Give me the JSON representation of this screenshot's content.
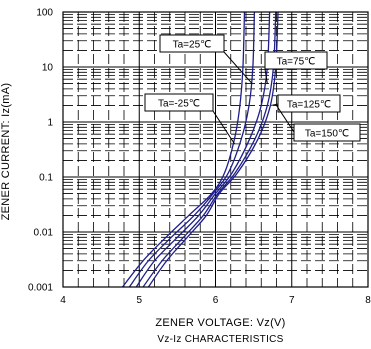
{
  "chart_data": {
    "type": "line",
    "title": "",
    "caption": "Vz-Iz CHARACTERISTICS",
    "xlabel": "ZENER VOLTAGE: Vz(V)",
    "ylabel": "ZENER CURRENT: Iz(mA)",
    "xlim": [
      4,
      8
    ],
    "ylim": [
      0.001,
      100
    ],
    "yscale": "log",
    "grid": true,
    "xticks": [
      {
        "value": 4,
        "label": "4"
      },
      {
        "value": 5,
        "label": "5"
      },
      {
        "value": 6,
        "label": "6"
      },
      {
        "value": 7,
        "label": "7"
      },
      {
        "value": 8,
        "label": "8"
      }
    ],
    "yticks": [
      {
        "value": 100,
        "label": "100"
      },
      {
        "value": 10,
        "label": "10"
      },
      {
        "value": 1,
        "label": "1"
      },
      {
        "value": 0.1,
        "label": "0.1"
      },
      {
        "value": 0.01,
        "label": "0.01"
      },
      {
        "value": 0.001,
        "label": "0.001"
      }
    ],
    "series": [
      {
        "name": "Ta=-25℃",
        "points": [
          [
            4.78,
            0.001
          ],
          [
            5.05,
            0.003
          ],
          [
            5.35,
            0.008
          ],
          [
            5.65,
            0.02
          ],
          [
            5.95,
            0.05
          ],
          [
            6.12,
            0.12
          ],
          [
            6.25,
            0.5
          ],
          [
            6.32,
            2.0
          ],
          [
            6.36,
            10
          ],
          [
            6.38,
            100
          ]
        ]
      },
      {
        "name": "Ta=25℃",
        "points": [
          [
            4.87,
            0.001
          ],
          [
            5.12,
            0.003
          ],
          [
            5.42,
            0.008
          ],
          [
            5.72,
            0.02
          ],
          [
            5.97,
            0.05
          ],
          [
            6.17,
            0.12
          ],
          [
            6.34,
            0.5
          ],
          [
            6.44,
            2.0
          ],
          [
            6.49,
            10
          ],
          [
            6.51,
            100
          ]
        ]
      },
      {
        "name": "Ta=75℃",
        "points": [
          [
            4.96,
            0.001
          ],
          [
            5.2,
            0.003
          ],
          [
            5.5,
            0.008
          ],
          [
            5.78,
            0.02
          ],
          [
            6.0,
            0.05
          ],
          [
            6.22,
            0.12
          ],
          [
            6.45,
            0.5
          ],
          [
            6.6,
            2.0
          ],
          [
            6.68,
            10
          ],
          [
            6.71,
            100
          ]
        ]
      },
      {
        "name": "Ta=125℃",
        "points": [
          [
            5.05,
            0.001
          ],
          [
            5.3,
            0.003
          ],
          [
            5.58,
            0.008
          ],
          [
            5.84,
            0.02
          ],
          [
            6.03,
            0.05
          ],
          [
            6.26,
            0.12
          ],
          [
            6.52,
            0.5
          ],
          [
            6.68,
            2.0
          ],
          [
            6.76,
            10
          ],
          [
            6.79,
            100
          ]
        ]
      },
      {
        "name": "Ta=150℃",
        "points": [
          [
            5.12,
            0.001
          ],
          [
            5.36,
            0.003
          ],
          [
            5.63,
            0.008
          ],
          [
            5.88,
            0.02
          ],
          [
            6.05,
            0.05
          ],
          [
            6.29,
            0.12
          ],
          [
            6.56,
            0.5
          ],
          [
            6.72,
            2.0
          ],
          [
            6.79,
            10
          ],
          [
            6.82,
            100
          ]
        ]
      }
    ],
    "annotations": [
      {
        "label": "Ta=25℃",
        "series": "Ta=25℃",
        "target": [
          6.48,
          5
        ]
      },
      {
        "label": "Ta=75℃",
        "series": "Ta=75℃",
        "target": [
          6.68,
          5
        ]
      },
      {
        "label": "Ta=-25℃",
        "series": "Ta=-25℃",
        "target": [
          6.25,
          0.4
        ]
      },
      {
        "label": "Ta=125℃",
        "series": "Ta=125℃",
        "target": [
          6.73,
          2
        ]
      },
      {
        "label": "Ta=150℃",
        "series": "Ta=150℃",
        "target": [
          6.8,
          2
        ]
      }
    ],
    "colors": {
      "curve": "#1f1f8c",
      "grid": "#000000",
      "frame": "#000000",
      "text": "#000000"
    }
  }
}
